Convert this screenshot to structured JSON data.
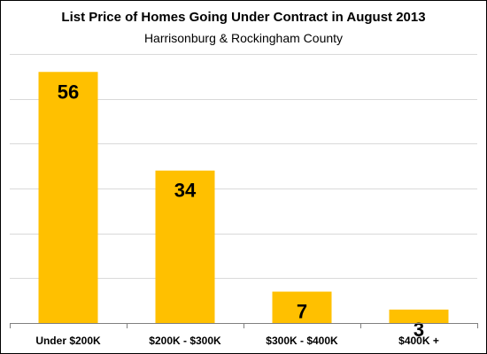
{
  "chart_data": {
    "type": "bar",
    "title": "List Price of Homes Going Under Contract in August 2013",
    "subtitle": "Harrisonburg  & Rockingham County",
    "categories": [
      "Under $200K",
      "$200K - $300K",
      "$300K - $400K",
      "$400K +"
    ],
    "values": [
      56,
      34,
      7,
      3
    ],
    "data_labels": [
      "56",
      "34",
      "7",
      "3"
    ],
    "xlabel": "",
    "ylabel": "",
    "ylim": [
      0,
      60
    ],
    "grid": true,
    "legend": "none",
    "bar_color": "#FFC000",
    "gridline_color": "#D9D9D9",
    "axis_color": "#808080"
  }
}
